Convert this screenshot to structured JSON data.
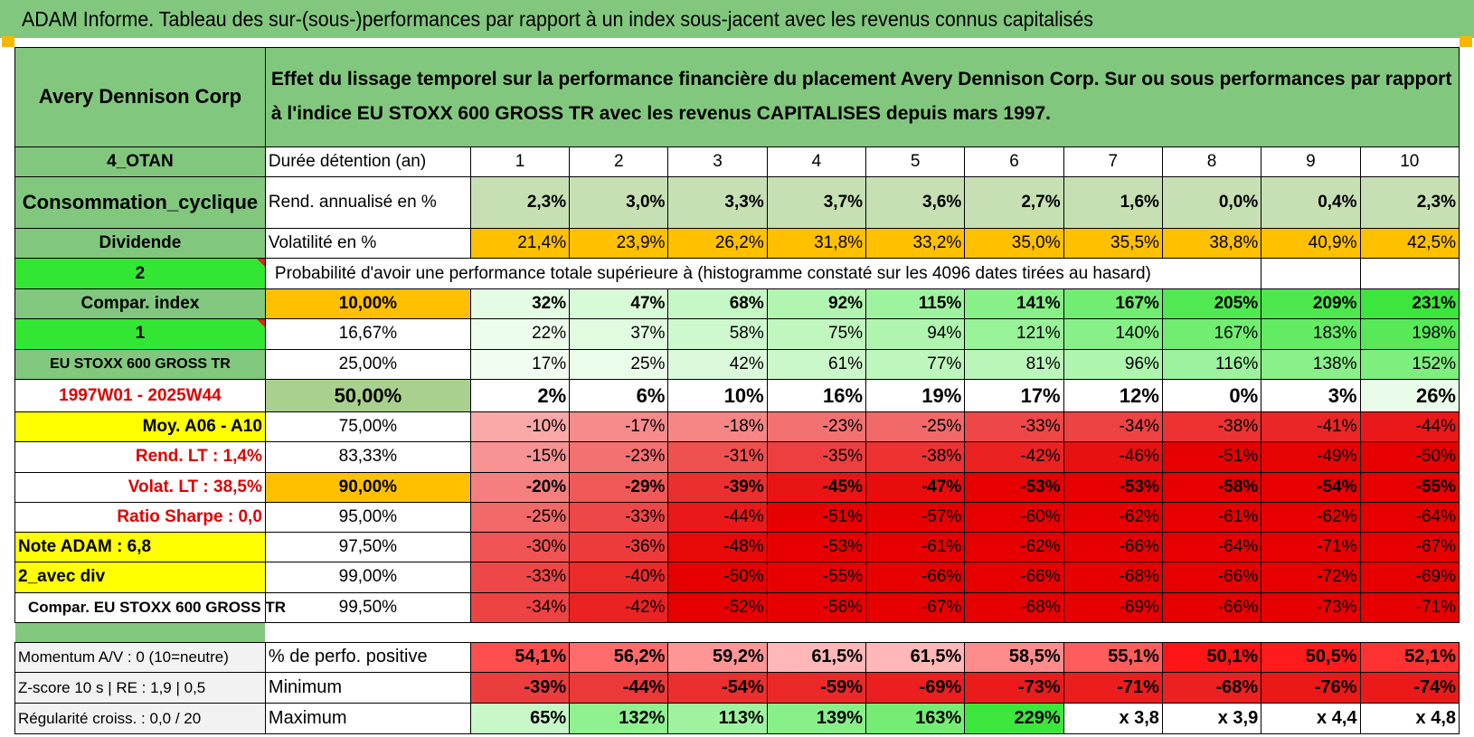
{
  "title": "ADAM Informe. Tableau des sur-(sous-)performances par rapport à un index sous-jacent avec les revenus connus capitalisés",
  "company": "Avery Dennison Corp",
  "header_text": "Effet du lissage temporel sur la performance financière du placement Avery Dennison Corp. Sur ou sous performances par rapport à l'indice EU STOXX 600 GROSS TR avec les revenus CAPITALISES depuis mars 1997.",
  "left_labels": {
    "otan": "4_OTAN",
    "sector": "Consommation_cyclique",
    "dividende": "Dividende",
    "num2": "2",
    "compar_index": "Compar. index",
    "num1": "1",
    "index_name": "EU STOXX 600 GROSS TR",
    "period": "1997W01 - 2025W44",
    "moy": "Moy. A06 - A10",
    "rend_lt": "Rend. LT :    1,4%",
    "volat_lt": "Volat. LT :    38,5%",
    "sharpe": "Ratio Sharpe :     0,0",
    "note": "Note ADAM : 6,8",
    "avec_div": "2_avec div",
    "compar_eu": "Compar. EU STOXX 600 GROSS TR",
    "momentum": "Momentum A/V : 0 (10=neutre)",
    "zscore": "Z-score 10 s | RE : 1,9 | 0,5",
    "regularite": "Régularité croiss. : 0,0 / 20"
  },
  "years": {
    "label": "Durée détention (an)",
    "values": [
      "1",
      "2",
      "3",
      "4",
      "5",
      "6",
      "7",
      "8",
      "9",
      "10"
    ]
  },
  "rend": {
    "label": "Rend. annualisé en %",
    "values": [
      "2,3%",
      "3,0%",
      "3,3%",
      "3,7%",
      "3,6%",
      "2,7%",
      "1,6%",
      "0,0%",
      "0,4%",
      "2,3%"
    ]
  },
  "volat": {
    "label": "Volatilité en %",
    "values": [
      "21,4%",
      "23,9%",
      "26,2%",
      "31,8%",
      "33,2%",
      "35,0%",
      "35,5%",
      "38,8%",
      "40,9%",
      "42,5%"
    ]
  },
  "proba_text": "Probabilité d'avoir une performance totale supérieure à (histogramme constaté sur les 4096 dates tirées au hasard)",
  "pct_rows": [
    {
      "pct": "10,00%",
      "values": [
        "32%",
        "47%",
        "68%",
        "92%",
        "115%",
        "141%",
        "167%",
        "205%",
        "209%",
        "231%"
      ]
    },
    {
      "pct": "16,67%",
      "values": [
        "22%",
        "37%",
        "58%",
        "75%",
        "94%",
        "121%",
        "140%",
        "167%",
        "183%",
        "198%"
      ]
    },
    {
      "pct": "25,00%",
      "values": [
        "17%",
        "25%",
        "42%",
        "61%",
        "77%",
        "81%",
        "96%",
        "116%",
        "138%",
        "152%"
      ]
    },
    {
      "pct": "50,00%",
      "values": [
        "2%",
        "6%",
        "10%",
        "16%",
        "19%",
        "17%",
        "12%",
        "0%",
        "3%",
        "26%"
      ]
    },
    {
      "pct": "75,00%",
      "values": [
        "-10%",
        "-17%",
        "-18%",
        "-23%",
        "-25%",
        "-33%",
        "-34%",
        "-38%",
        "-41%",
        "-44%"
      ]
    },
    {
      "pct": "83,33%",
      "values": [
        "-15%",
        "-23%",
        "-31%",
        "-35%",
        "-38%",
        "-42%",
        "-46%",
        "-51%",
        "-49%",
        "-50%"
      ]
    },
    {
      "pct": "90,00%",
      "values": [
        "-20%",
        "-29%",
        "-39%",
        "-45%",
        "-47%",
        "-53%",
        "-53%",
        "-58%",
        "-54%",
        "-55%"
      ]
    },
    {
      "pct": "95,00%",
      "values": [
        "-25%",
        "-33%",
        "-44%",
        "-51%",
        "-57%",
        "-60%",
        "-62%",
        "-61%",
        "-62%",
        "-64%"
      ]
    },
    {
      "pct": "97,50%",
      "values": [
        "-30%",
        "-36%",
        "-48%",
        "-53%",
        "-61%",
        "-62%",
        "-66%",
        "-64%",
        "-71%",
        "-67%"
      ]
    },
    {
      "pct": "99,00%",
      "values": [
        "-33%",
        "-40%",
        "-50%",
        "-55%",
        "-66%",
        "-66%",
        "-68%",
        "-66%",
        "-72%",
        "-69%"
      ]
    },
    {
      "pct": "99,50%",
      "values": [
        "-34%",
        "-42%",
        "-52%",
        "-56%",
        "-67%",
        "-68%",
        "-69%",
        "-66%",
        "-73%",
        "-71%"
      ]
    }
  ],
  "positive": {
    "label": "% de perfo. positive",
    "values": [
      "54,1%",
      "56,2%",
      "59,2%",
      "61,5%",
      "61,5%",
      "58,5%",
      "55,1%",
      "50,1%",
      "50,5%",
      "52,1%"
    ]
  },
  "minimum": {
    "label": "Minimum",
    "values": [
      "-39%",
      "-44%",
      "-54%",
      "-59%",
      "-69%",
      "-73%",
      "-71%",
      "-68%",
      "-76%",
      "-74%"
    ]
  },
  "maximum": {
    "label": "Maximum",
    "values": [
      "65%",
      "132%",
      "113%",
      "139%",
      "163%",
      "229%",
      "x 3,8",
      "x 3,9",
      "x 4,4",
      "x 4,8"
    ]
  },
  "colors": {
    "title_bg": "#82c77e",
    "label_green": "#82c77e",
    "bright_green": "#33e633",
    "orange": "#ffc000",
    "yellow": "#ffff00",
    "red_text": "#e00000",
    "rend_bg": "#c6e0b4",
    "median_bg": "#a9d08e"
  }
}
